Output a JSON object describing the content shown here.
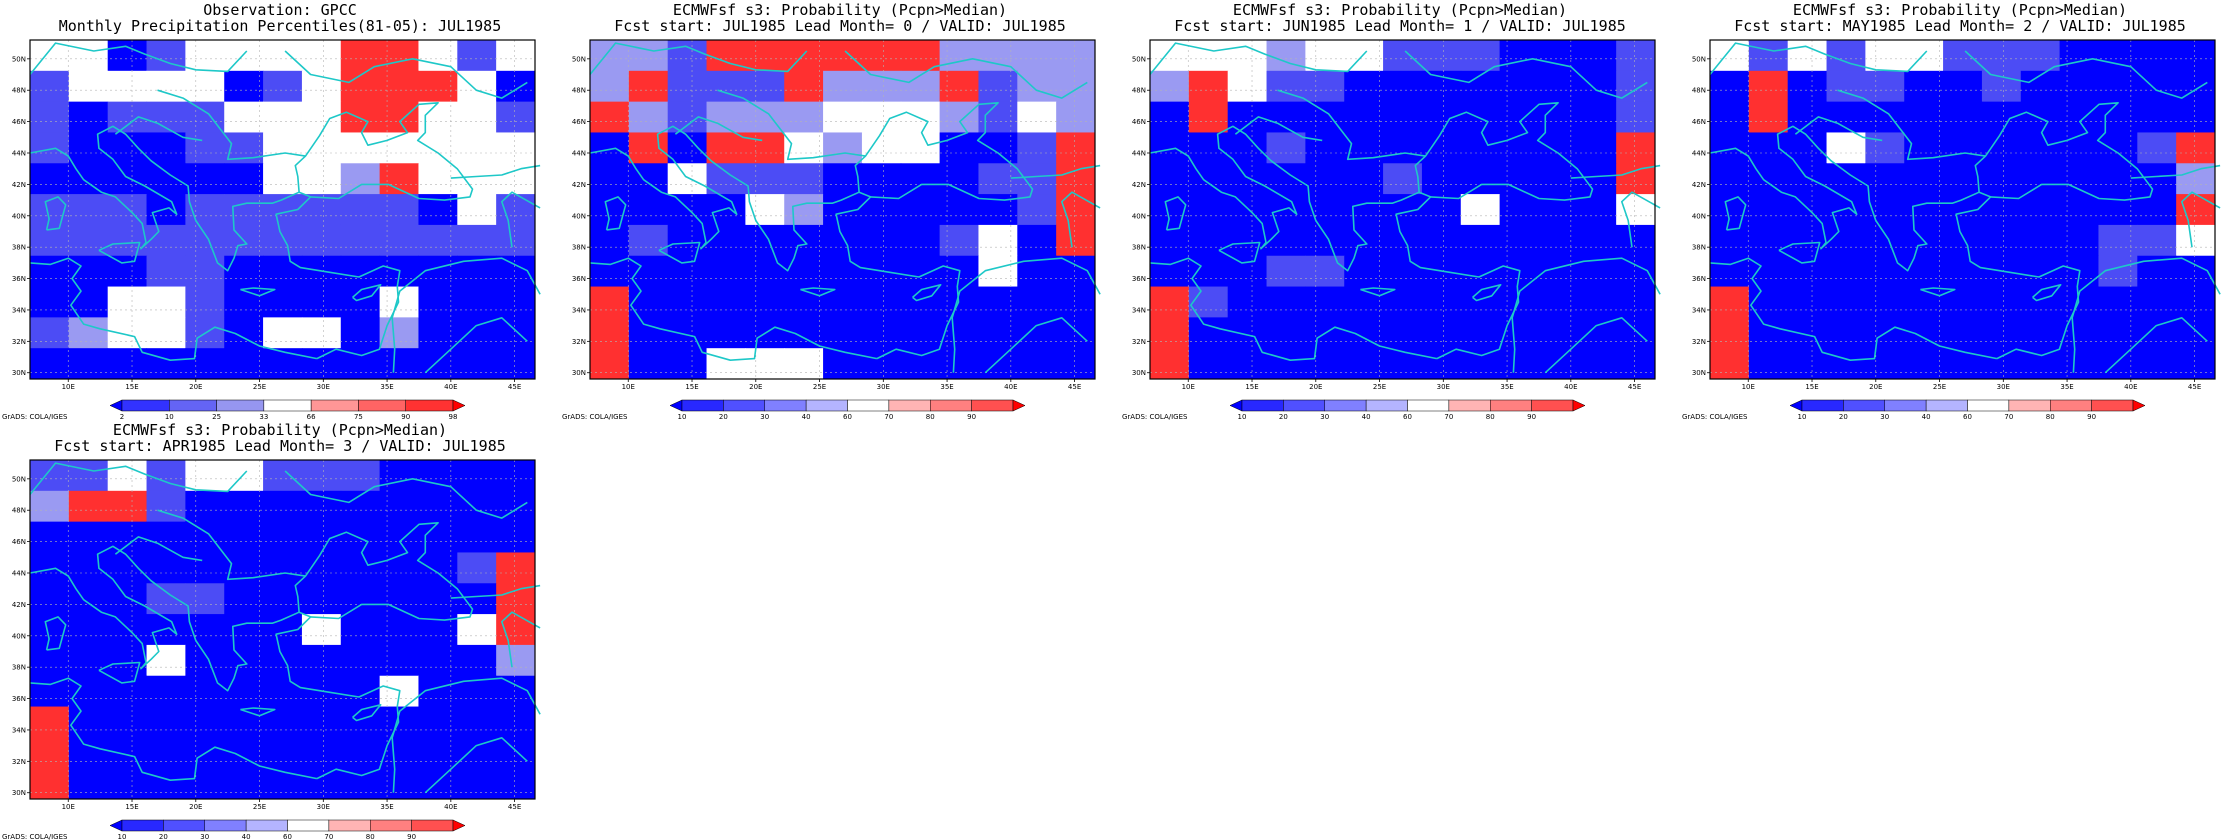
{
  "colors": {
    "coast": "#1ec8c8",
    "grid": "#b4b4b4",
    "frame": "#000000"
  },
  "map_axes": {
    "lat_labels": [
      "30N",
      "32N",
      "34N",
      "36N",
      "38N",
      "40N",
      "42N",
      "44N",
      "46N",
      "48N",
      "50N"
    ],
    "lon_labels": [
      "10E",
      "15E",
      "20E",
      "25E",
      "30E",
      "35E",
      "40E",
      "45E"
    ]
  },
  "credit": "GrADS: COLA/IGES",
  "panels": [
    {
      "id": "obs",
      "title_line1": "Observation: GPCC",
      "title_line2": "Monthly Precipitation Percentiles(81-05): JUL1985",
      "colorbar": {
        "labels": [
          "2",
          "10",
          "25",
          "33",
          "66",
          "75",
          "90",
          "98"
        ],
        "colors": [
          "#0000ff",
          "#3232ff",
          "#6464f5",
          "#9696f0",
          "#ffffff",
          "#ff9696",
          "#ff6464",
          "#ff3232",
          "#ff0000"
        ]
      },
      "grid": [
        "WWBMWWWWRRWMW",
        "MWWWWBMWRRRWB",
        "MBMMMWWWRRWWM",
        "MBBBMMWWWWWWW",
        "BBBBBBWWPRWWW",
        "MMMBMMMMMMBWM",
        "MMMMMMMMMMMMM",
        "BBBMMBBBBBBBB",
        "BBWWMBBBBWBBB",
        "MPWWMBWWBPBBB",
        "BBBBBBBBBBBBB"
      ]
    },
    {
      "id": "lead0",
      "title_line1": "ECMWFsf s3: Probability (Pcpn>Median)",
      "title_line2": "Fcst start: JUL1985  Lead Month= 0 / VALID: JUL1985",
      "colorbar": {
        "labels": [
          "10",
          "20",
          "30",
          "40",
          "60",
          "70",
          "80",
          "90"
        ],
        "colors": [
          "#0000ff",
          "#2828ff",
          "#5050ff",
          "#8080ff",
          "#b4b4ff",
          "#ffffff",
          "#ffb4b4",
          "#ff8080",
          "#ff5050",
          "#ff0000"
        ]
      },
      "grid": [
        "PPMRRRRRRPPPP",
        "PRMMMRPPPRMPP",
        "RPMPPPWWWPMWP",
        "BRBRRWPWWBBMR",
        "BBWMMMBBBBMMR",
        "BBBBWPBBBBBMR",
        "BMBBBBBBBMWBR",
        "BBBBBBBBBBWBB",
        "RBBBBBBBBBBBB",
        "RBBBBBBBBBBBB",
        "RBBWWWBBBBBBB"
      ]
    },
    {
      "id": "lead1",
      "title_line1": "ECMWFsf s3: Probability (Pcpn>Median)",
      "title_line2": "Fcst start: JUN1985  Lead Month= 1 / VALID: JUL1985",
      "colorbar": {
        "labels": [
          "10",
          "20",
          "30",
          "40",
          "60",
          "70",
          "80",
          "90"
        ],
        "colors": [
          "#0000ff",
          "#2828ff",
          "#5050ff",
          "#8080ff",
          "#b4b4ff",
          "#ffffff",
          "#ffb4b4",
          "#ff8080",
          "#ff5050",
          "#ff0000"
        ]
      },
      "grid": [
        "WWWPWWMMMBBBM",
        "PRWMMBBBBBBBM",
        "BRBBBBBBBBBBM",
        "BBBMBBBBBBBBR",
        "BBBBBBMBBBBBR",
        "BBBBBBBBWBBBW",
        "BBBBBBBBBBBBB",
        "BBBMMBBBBBBBB",
        "RMBBBBBBBBBBB",
        "RBBBBBBBBBBBB",
        "RBBBBBBBBBBBB"
      ]
    },
    {
      "id": "lead2",
      "title_line1": "ECMWFsf s3: Probability (Pcpn>Median)",
      "title_line2": "Fcst start: MAY1985  Lead Month= 2 / VALID: JUL1985",
      "colorbar": {
        "labels": [
          "10",
          "20",
          "30",
          "40",
          "60",
          "70",
          "80",
          "90"
        ],
        "colors": [
          "#0000ff",
          "#2828ff",
          "#5050ff",
          "#8080ff",
          "#b4b4ff",
          "#ffffff",
          "#ffb4b4",
          "#ff8080",
          "#ff5050",
          "#ff0000"
        ]
      },
      "grid": [
        "WMWMWWMMMBBBB",
        "BRBMMBBMBBBBB",
        "BRBBBBBBBBBBB",
        "BBBWMBBBBBBMR",
        "BBBBBBBBBBBBP",
        "BBBBBBBBBBBBR",
        "BBBBBBBBBBMMW",
        "BBBBBBBBBBMBB",
        "RBBBBBBBBBBBB",
        "RBBBBBBBBBBBB",
        "RBBBBBBBBBBBB"
      ]
    },
    {
      "id": "lead3",
      "title_line1": "ECMWFsf s3: Probability (Pcpn>Median)",
      "title_line2": "Fcst start: APR1985  Lead Month= 3 / VALID: JUL1985",
      "colorbar": {
        "labels": [
          "10",
          "20",
          "30",
          "40",
          "60",
          "70",
          "80",
          "90"
        ],
        "colors": [
          "#0000ff",
          "#2828ff",
          "#5050ff",
          "#8080ff",
          "#b4b4ff",
          "#ffffff",
          "#ffb4b4",
          "#ff8080",
          "#ff5050",
          "#ff0000"
        ]
      },
      "grid": [
        "MMWMWWMMMBBBB",
        "PRRMBBBBBBBBB",
        "BBBBBBBBBBBBB",
        "BBBBBBBBBBBMR",
        "BBBMMBBBBBBBR",
        "BBBBBBBWBBBWR",
        "BBBWBBBBBBBBP",
        "BBBBBBBBBWBBB",
        "RBBBBBBBBBBBB",
        "RBBBBBBBBBBBB",
        "RBBBBBBBBBBBB"
      ]
    }
  ]
}
